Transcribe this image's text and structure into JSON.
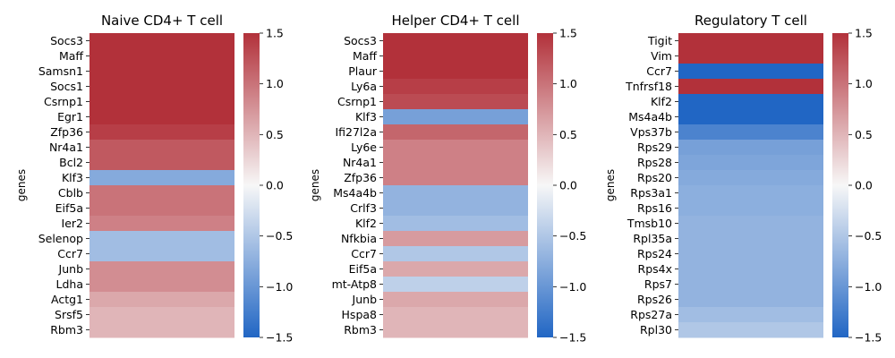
{
  "colormap": {
    "low": "#2166c4",
    "mid": "#f7f7f7",
    "high": "#b2313a"
  },
  "chart_data": [
    {
      "type": "heatmap",
      "title": "Naive CD4+ T cell",
      "ylabel": "genes",
      "rows": [
        "Socs3",
        "Maff",
        "Samsn1",
        "Socs1",
        "Csrnp1",
        "Egr1",
        "Zfp36",
        "Nr4a1",
        "Bcl2",
        "Klf3",
        "Cblb",
        "Eif5a",
        "Ier2",
        "Selenop",
        "Ccr7",
        "Junb",
        "Ldha",
        "Actg1",
        "Srsf5",
        "Rbm3"
      ],
      "values": [
        1.5,
        1.5,
        1.5,
        1.5,
        1.5,
        1.5,
        1.4,
        1.2,
        1.2,
        -0.8,
        1.0,
        1.0,
        0.9,
        -0.6,
        -0.6,
        0.8,
        0.8,
        0.6,
        0.5,
        0.5
      ],
      "colorbar": {
        "min": -1.5,
        "max": 1.5,
        "ticks": [
          "1.5",
          "1.0",
          "0.5",
          "0.0",
          "−0.5",
          "−1.0",
          "−1.5"
        ]
      }
    },
    {
      "type": "heatmap",
      "title": "Helper CD4+ T cell",
      "ylabel": "genes",
      "rows": [
        "Socs3",
        "Maff",
        "Plaur",
        "Ly6a",
        "Csrnp1",
        "Klf3",
        "Ifi27l2a",
        "Ly6e",
        "Nr4a1",
        "Zfp36",
        "Ms4a4b",
        "Crlf3",
        "Klf2",
        "Nfkbia",
        "Ccr7",
        "Eif5a",
        "mt-Atp8",
        "Junb",
        "Hspa8",
        "Rbm3"
      ],
      "values": [
        1.5,
        1.5,
        1.5,
        1.4,
        1.3,
        -0.9,
        1.1,
        0.9,
        0.9,
        0.9,
        -0.7,
        -0.7,
        -0.6,
        0.7,
        -0.5,
        0.6,
        -0.4,
        0.6,
        0.5,
        0.5
      ],
      "colorbar": {
        "min": -1.5,
        "max": 1.5,
        "ticks": [
          "1.5",
          "1.0",
          "0.5",
          "0.0",
          "−0.5",
          "−1.0",
          "−1.5"
        ]
      }
    },
    {
      "type": "heatmap",
      "title": "Regulatory T cell",
      "ylabel": "genes",
      "rows": [
        "Tigit",
        "Vim",
        "Ccr7",
        "Tnfrsf18",
        "Klf2",
        "Ms4a4b",
        "Vps37b",
        "Rps29",
        "Rps28",
        "Rps20",
        "Rps3a1",
        "Rps16",
        "Tmsb10",
        "Rpl35a",
        "Rps24",
        "Rps4x",
        "Rps7",
        "Rps26",
        "Rps27a",
        "Rpl30"
      ],
      "values": [
        1.5,
        1.5,
        -1.5,
        1.5,
        -1.5,
        -1.5,
        -1.2,
        -0.9,
        -0.85,
        -0.8,
        -0.75,
        -0.75,
        -0.7,
        -0.7,
        -0.7,
        -0.7,
        -0.7,
        -0.7,
        -0.6,
        -0.5
      ],
      "colorbar": {
        "min": -1.5,
        "max": 1.5,
        "ticks": [
          "1.5",
          "1.0",
          "0.5",
          "0.0",
          "−0.5",
          "−1.0",
          "−1.5"
        ]
      }
    }
  ]
}
